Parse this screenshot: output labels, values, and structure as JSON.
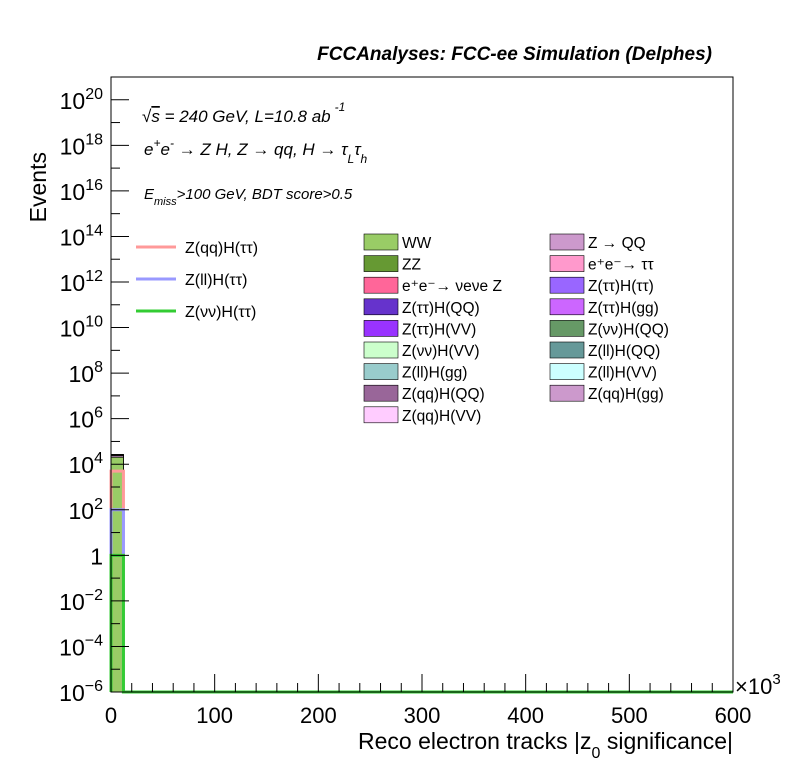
{
  "chart_data": {
    "type": "bar",
    "title": "FCCAnalyses: FCC-ee Simulation (Delphes)",
    "xlabel": "Reco electron tracks |z0 significance|",
    "xlabel_parts": [
      "Reco electron tracks |z",
      "0",
      " significance|"
    ],
    "ylabel": "Events",
    "x_multiplier": "×10³",
    "x_multiplier_base": "×10",
    "x_multiplier_exp": "3",
    "xlim": [
      0,
      600000
    ],
    "ylim": [
      1e-06,
      1e+21
    ],
    "log_y": true,
    "grid": false,
    "x_ticks": [
      {
        "value": 0,
        "label": "0"
      },
      {
        "value": 100000,
        "label": "100"
      },
      {
        "value": 200000,
        "label": "200"
      },
      {
        "value": 300000,
        "label": "300"
      },
      {
        "value": 400000,
        "label": "400"
      },
      {
        "value": 500000,
        "label": "500"
      },
      {
        "value": 600000,
        "label": "600"
      }
    ],
    "y_ticks": [
      {
        "exp": -6,
        "base": "10",
        "sup": "−6"
      },
      {
        "exp": -4,
        "base": "10",
        "sup": "−4"
      },
      {
        "exp": -2,
        "base": "10",
        "sup": "−2"
      },
      {
        "exp": 0,
        "base": "1",
        "sup": ""
      },
      {
        "exp": 2,
        "base": "10",
        "sup": "2"
      },
      {
        "exp": 4,
        "base": "10",
        "sup": "4"
      },
      {
        "exp": 6,
        "base": "10",
        "sup": "6"
      },
      {
        "exp": 8,
        "base": "10",
        "sup": "8"
      },
      {
        "exp": 10,
        "base": "10",
        "sup": "10"
      },
      {
        "exp": 12,
        "base": "10",
        "sup": "12"
      },
      {
        "exp": 14,
        "base": "10",
        "sup": "14"
      },
      {
        "exp": 16,
        "base": "10",
        "sup": "16"
      },
      {
        "exp": 18,
        "base": "10",
        "sup": "18"
      },
      {
        "exp": 20,
        "base": "10",
        "sup": "20"
      }
    ],
    "annotations": {
      "line1": "√s = 240 GeV, L=10.8 ab⁻¹",
      "line2": "e⁺e⁻ → Z H, Z → qq, H → τLτh",
      "line3": "Emiss>100 GeV, BDT score>0.5"
    },
    "signals": [
      {
        "name": "Z(qq)H(ττ)",
        "color": "#ff9999",
        "values": [
          5000,
          0
        ]
      },
      {
        "name": "Z(ll)H(ττ)",
        "color": "#9999ff",
        "values": [
          100,
          0
        ]
      },
      {
        "name": "Z(νν)H(ττ)",
        "color": "#33cc33",
        "values": [
          1,
          0
        ]
      }
    ],
    "backgrounds": [
      {
        "name": "WW",
        "color": "#99cc66",
        "values": [
          20000,
          0
        ]
      },
      {
        "name": "Z → QQ",
        "color": "#cc99cc",
        "values": [
          3000,
          0
        ]
      },
      {
        "name": "ZZ",
        "color": "#669933",
        "values": [
          1000,
          0
        ]
      },
      {
        "name": "e⁺e⁻→ ττ",
        "color": "#ff99cc",
        "values": [
          1000,
          0
        ]
      },
      {
        "name": "e⁺e⁻→ νeνe Z",
        "color": "#ff6699",
        "values": [
          500,
          0
        ]
      },
      {
        "name": "Z(ττ)H(ττ)",
        "color": "#9966ff",
        "values": [
          300,
          0
        ]
      },
      {
        "name": "Z(ττ)H(QQ)",
        "color": "#6633cc",
        "values": [
          200,
          0
        ]
      },
      {
        "name": "Z(ττ)H(gg)",
        "color": "#cc66ff",
        "values": [
          100,
          0
        ]
      },
      {
        "name": "Z(ττ)H(VV)",
        "color": "#9933ff",
        "values": [
          80,
          0
        ]
      },
      {
        "name": "Z(νν)H(QQ)",
        "color": "#669966",
        "values": [
          60,
          0
        ]
      },
      {
        "name": "Z(νν)H(VV)",
        "color": "#ccffcc",
        "values": [
          40,
          0
        ]
      },
      {
        "name": "Z(ll)H(QQ)",
        "color": "#669999",
        "values": [
          30,
          0
        ]
      },
      {
        "name": "Z(ll)H(gg)",
        "color": "#99cccc",
        "values": [
          20,
          0
        ]
      },
      {
        "name": "Z(ll)H(VV)",
        "color": "#ccffff",
        "values": [
          15,
          0
        ]
      },
      {
        "name": "Z(qq)H(QQ)",
        "color": "#996699",
        "values": [
          10,
          0
        ]
      },
      {
        "name": "Z(qq)H(gg)",
        "color": "#cc99cc",
        "values": [
          8,
          0
        ]
      },
      {
        "name": "Z(qq)H(VV)",
        "color": "#ffccff",
        "values": [
          5,
          0
        ]
      }
    ],
    "bin_edges": [
      0,
      12000,
      600000
    ]
  }
}
